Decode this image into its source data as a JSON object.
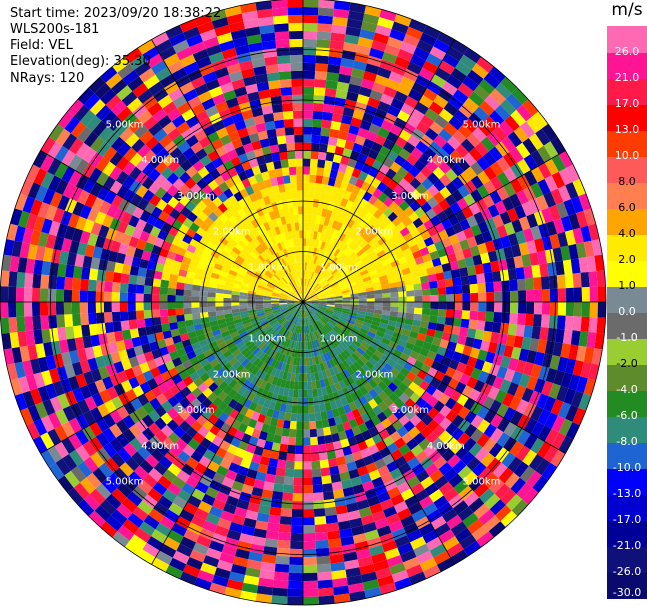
{
  "header": {
    "start_time": "Start time: 2023/09/20 18:38:22",
    "instrument": "WLS200s-181",
    "field": "Field: VEL",
    "elevation": "Elevation(deg): 35.30",
    "nrays": "NRays: 120"
  },
  "chart_data": {
    "type": "heatmap",
    "projection": "polar-ppi",
    "field": "VEL",
    "unit": "m/s",
    "range_ring_labels": [
      "1.00km",
      "2.00km",
      "3.00km",
      "4.00km",
      "5.00km"
    ],
    "range_rings_km": [
      1,
      2,
      3,
      4,
      5,
      6
    ],
    "max_range_km": 6,
    "n_rays": 120,
    "grid": true,
    "colorbar": {
      "levels": [
        -30,
        -26,
        -21,
        -17,
        -13,
        -10,
        -8,
        -6,
        -4,
        -2,
        -1,
        0,
        1,
        2,
        4,
        6,
        8,
        10,
        13,
        17,
        21,
        26,
        30
      ],
      "tick_labels": [
        "-30.0",
        "-26.0",
        "-21.0",
        "-17.0",
        "-13.0",
        "-10.0",
        "-8.0",
        "-6.0",
        "-4.0",
        "-2.0",
        "-1.0",
        "0.0",
        "1.0",
        "2.0",
        "4.0",
        "6.0",
        "8.0",
        "10.0",
        "13.0",
        "17.0",
        "21.0",
        "26.0"
      ],
      "colors": [
        "#0a0a6e",
        "#10107a",
        "#000098",
        "#0000d0",
        "#0000ff",
        "#1e64d2",
        "#2f8c7a",
        "#228b22",
        "#5e8c2c",
        "#9acd32",
        "#6b6b6b",
        "#7a8a94",
        "#ffff00",
        "#ffea00",
        "#ffa500",
        "#ff7f50",
        "#ff5a5a",
        "#ff3c00",
        "#ff0000",
        "#ff1a4a",
        "#ff1493",
        "#ff69b4"
      ]
    },
    "regions": [
      {
        "name": "near-range toward the viewer",
        "azimuth_deg": [
          100,
          260
        ],
        "range_km": [
          0,
          2.3
        ],
        "velocity_ms": -6
      },
      {
        "name": "near-range away from the viewer",
        "azimuth_deg": [
          280,
          80
        ],
        "range_km": [
          0,
          2.3
        ],
        "velocity_ms": 3
      },
      {
        "name": "far-range noise",
        "range_km": [
          2.5,
          6
        ],
        "velocity_ms": "random"
      }
    ]
  }
}
